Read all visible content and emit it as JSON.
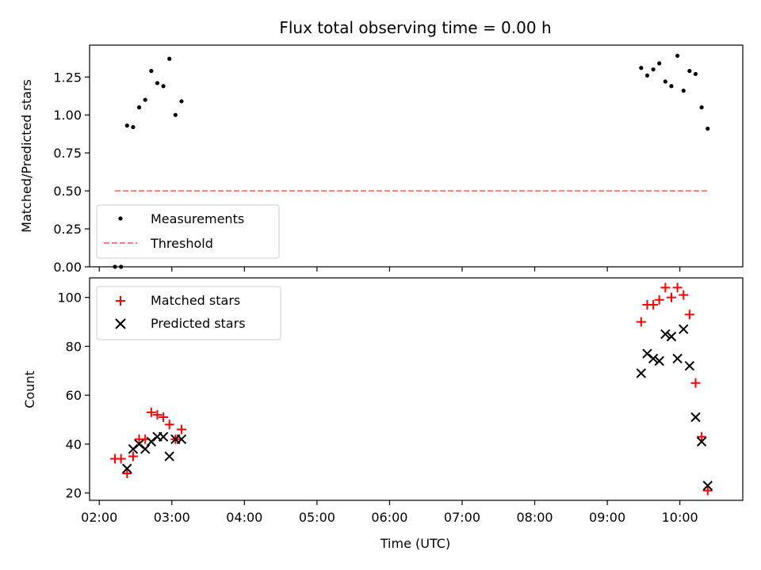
{
  "chart_data": [
    {
      "type": "scatter",
      "title": "Flux total observing time = 0.00 h",
      "xlabel": "",
      "ylabel": "Matched/Predicted stars",
      "xlim": [
        "01:52",
        "10:52"
      ],
      "ylim": [
        0,
        1.46
      ],
      "yticks": [
        0.0,
        0.25,
        0.5,
        0.75,
        1.0,
        1.25
      ],
      "ytick_labels": [
        "0.00",
        "0.25",
        "0.50",
        "0.75",
        "1.00",
        "1.25"
      ],
      "legend": "lower-left",
      "series": [
        {
          "name": "Measurements",
          "marker": "dot",
          "color": "#000000",
          "x": [
            "02:13",
            "02:18",
            "02:23",
            "02:28",
            "02:33",
            "02:38",
            "02:43",
            "02:48",
            "02:53",
            "02:58",
            "03:03",
            "03:08",
            "09:28",
            "09:33",
            "09:38",
            "09:43",
            "09:48",
            "09:53",
            "09:58",
            "10:03",
            "10:08",
            "10:13",
            "10:18",
            "10:23"
          ],
          "y": [
            0.0,
            0.0,
            0.93,
            0.92,
            1.05,
            1.1,
            1.29,
            1.21,
            1.19,
            1.37,
            1.0,
            1.09,
            1.31,
            1.26,
            1.3,
            1.34,
            1.22,
            1.19,
            1.39,
            1.16,
            1.29,
            1.27,
            1.05,
            0.91
          ]
        },
        {
          "name": "Threshold",
          "style": "dashed",
          "color": "#ff7b7b",
          "x": [
            "02:13",
            "10:23"
          ],
          "y": [
            0.5,
            0.5
          ]
        }
      ]
    },
    {
      "type": "scatter",
      "title": "",
      "xlabel": "Time (UTC)",
      "ylabel": "Count",
      "xlim": [
        "01:52",
        "10:52"
      ],
      "ylim": [
        17,
        108
      ],
      "yticks": [
        20,
        40,
        60,
        80,
        100
      ],
      "ytick_labels": [
        "20",
        "40",
        "60",
        "80",
        "100"
      ],
      "xticks": [
        "02:00",
        "03:00",
        "04:00",
        "05:00",
        "06:00",
        "07:00",
        "08:00",
        "09:00",
        "10:00"
      ],
      "xtick_labels": [
        "02:00",
        "03:00",
        "04:00",
        "05:00",
        "06:00",
        "07:00",
        "08:00",
        "09:00",
        "10:00"
      ],
      "legend": "upper-left",
      "series": [
        {
          "name": "Matched stars",
          "marker": "plus",
          "color": "#ff0000",
          "x": [
            "02:13",
            "02:18",
            "02:23",
            "02:28",
            "02:33",
            "02:38",
            "02:43",
            "02:48",
            "02:53",
            "02:58",
            "03:03",
            "03:08",
            "09:28",
            "09:33",
            "09:38",
            "09:43",
            "09:48",
            "09:53",
            "09:58",
            "10:03",
            "10:08",
            "10:13",
            "10:18",
            "10:23"
          ],
          "y": [
            34,
            34,
            28,
            35,
            42,
            42,
            53,
            52,
            51,
            48,
            42,
            46,
            90,
            97,
            97,
            99,
            104,
            100,
            104,
            101,
            93,
            65,
            43,
            21
          ]
        },
        {
          "name": "Predicted stars",
          "marker": "x",
          "color": "#000000",
          "x": [
            "02:23",
            "02:28",
            "02:33",
            "02:38",
            "02:43",
            "02:48",
            "02:53",
            "02:58",
            "03:03",
            "03:08",
            "09:28",
            "09:33",
            "09:38",
            "09:43",
            "09:48",
            "09:53",
            "09:58",
            "10:03",
            "10:08",
            "10:13",
            "10:18",
            "10:23"
          ],
          "y": [
            30,
            38,
            40,
            38,
            41,
            43,
            43,
            35,
            42,
            42,
            69,
            77,
            75,
            74,
            85,
            84,
            75,
            87,
            72,
            51,
            41,
            23
          ]
        }
      ]
    }
  ]
}
